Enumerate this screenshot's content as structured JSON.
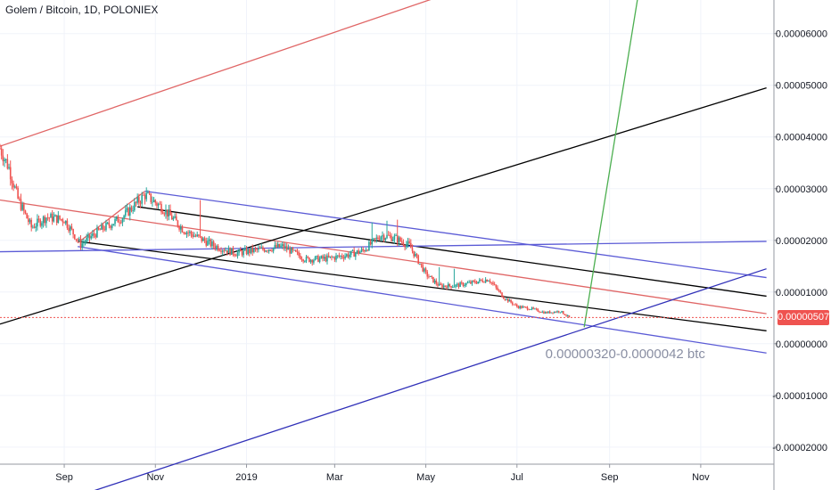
{
  "header": {
    "title": "Golem / Bitcoin, 1D, POLONIEX"
  },
  "colors": {
    "up_candle": "#26a69a",
    "down_candle": "#ef5350",
    "grid": "#f0f3fa",
    "axis_text": "#131722",
    "red_line": "#e06666",
    "black_line": "#000000",
    "blue_line": "#5b5bd6",
    "green_line": "#4caf50",
    "price_tag_bg": "#ef5350"
  },
  "chart_data": {
    "type": "candlestick",
    "title": "Golem / Bitcoin, 1D, POLONIEX",
    "x_ticks": [
      "Sep",
      "Nov",
      "2019",
      "Mar",
      "May",
      "Jul",
      "Sep",
      "Nov"
    ],
    "y_ticks": [
      "0.00006000",
      "0.00005000",
      "0.00004000",
      "0.00003000",
      "0.00002000",
      "0.00001000",
      "0.00000000",
      "-0.00001000",
      "-0.00002000"
    ],
    "y_tick_values": [
      6e-05,
      5e-05,
      4e-05,
      3e-05,
      2e-05,
      1e-05,
      0.0,
      -1e-05,
      -2e-05
    ],
    "ylim": [
      -2.83e-05,
      6.65e-05
    ],
    "last_price_label": "0.00000507",
    "last_price": 5.07e-06,
    "annotation": "0.00000320-0.0000042 btc",
    "price_path": [
      [
        "2018-07-20",
        3.78e-05
      ],
      [
        "2018-07-26",
        3.4e-05
      ],
      [
        "2018-08-01",
        2.8e-05
      ],
      [
        "2018-08-10",
        2.25e-05
      ],
      [
        "2018-08-20",
        2.45e-05
      ],
      [
        "2018-09-01",
        2.4e-05
      ],
      [
        "2018-09-12",
        1.92e-05
      ],
      [
        "2018-09-25",
        2.2e-05
      ],
      [
        "2018-10-10",
        2.45e-05
      ],
      [
        "2018-10-25",
        2.88e-05
      ],
      [
        "2018-11-05",
        2.65e-05
      ],
      [
        "2018-11-20",
        2.2e-05
      ],
      [
        "2018-12-10",
        1.9e-05
      ],
      [
        "2018-12-25",
        1.75e-05
      ],
      [
        "2019-01-10",
        1.82e-05
      ],
      [
        "2019-01-25",
        1.88e-05
      ],
      [
        "2019-02-10",
        1.63e-05
      ],
      [
        "2019-02-25",
        1.65e-05
      ],
      [
        "2019-03-10",
        1.72e-05
      ],
      [
        "2019-03-20",
        1.8e-05
      ],
      [
        "2019-04-01",
        2.1e-05
      ],
      [
        "2019-04-10",
        2.05e-05
      ],
      [
        "2019-04-20",
        1.9e-05
      ],
      [
        "2019-05-01",
        1.35e-05
      ],
      [
        "2019-05-10",
        1.12e-05
      ],
      [
        "2019-05-20",
        1.12e-05
      ],
      [
        "2019-06-01",
        1.18e-05
      ],
      [
        "2019-06-12",
        1.25e-05
      ],
      [
        "2019-06-22",
        9e-06
      ],
      [
        "2019-07-01",
        7.2e-06
      ],
      [
        "2019-07-10",
        6.8e-06
      ],
      [
        "2019-07-20",
        6e-06
      ],
      [
        "2019-07-30",
        6.3e-06
      ],
      [
        "2019-08-05",
        5.07e-06
      ]
    ],
    "spikes": [
      [
        "2018-12-01",
        2.78e-05
      ],
      [
        "2019-03-26",
        2.35e-05
      ],
      [
        "2019-04-05",
        2.38e-05
      ],
      [
        "2019-04-12",
        2.4e-05
      ],
      [
        "2019-05-10",
        1.48e-05
      ],
      [
        "2019-05-20",
        1.45e-05
      ]
    ],
    "lines": [
      {
        "kind": "red",
        "from": [
          "2018-07-20",
          3.82e-05
        ],
        "to": [
          "2019-06-20",
          7.12e-05
        ]
      },
      {
        "kind": "red",
        "from": [
          "2018-07-20",
          2.78e-05
        ],
        "to": [
          "2019-12-15",
          5.8e-06
        ]
      },
      {
        "kind": "black",
        "from": [
          "2018-07-20",
          3.8e-06
        ],
        "to": [
          "2019-12-15",
          4.95e-05
        ]
      },
      {
        "kind": "black",
        "from": [
          "2018-10-20",
          2.65e-05
        ],
        "to": [
          "2019-12-15",
          9.2e-06
        ]
      },
      {
        "kind": "black",
        "from": [
          "2018-09-10",
          1.98e-05
        ],
        "to": [
          "2019-12-15",
          2.5e-06
        ]
      },
      {
        "kind": "blue",
        "from": [
          "2018-10-25",
          2.95e-05
        ],
        "to": [
          "2019-12-15",
          1.28e-05
        ]
      },
      {
        "kind": "blue",
        "from": [
          "2018-09-10",
          1.88e-05
        ],
        "to": [
          "2019-12-15",
          -1.8e-06
        ]
      },
      {
        "kind": "blue",
        "from": [
          "2018-07-20",
          1.78e-05
        ],
        "to": [
          "2019-12-15",
          1.98e-05
        ]
      },
      {
        "kind": "navy",
        "from": [
          "2018-09-15",
          -2.9e-05
        ],
        "to": [
          "2019-12-15",
          1.45e-05
        ]
      },
      {
        "kind": "green",
        "from": [
          "2019-08-15",
          3.2e-06
        ],
        "to": [
          "2019-09-20",
          6.72e-05
        ]
      },
      {
        "kind": "red",
        "from": [
          "2018-09-10",
          1.95e-05
        ],
        "to": [
          "2018-10-25",
          2.95e-05
        ]
      }
    ]
  }
}
